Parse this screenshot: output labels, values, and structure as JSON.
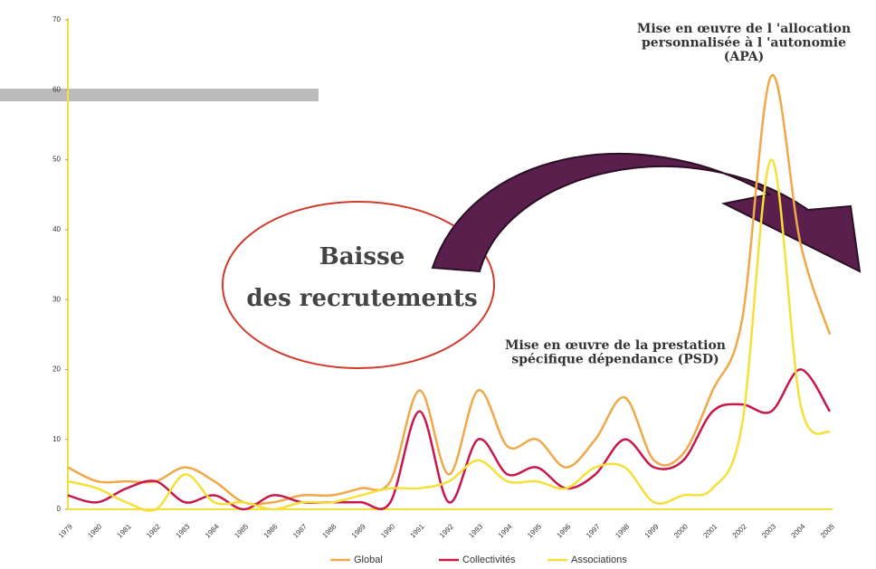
{
  "chart_data": {
    "type": "line",
    "categories": [
      "1979",
      "1980",
      "1981",
      "1982",
      "1983",
      "1984",
      "1985",
      "1986",
      "1987",
      "1988",
      "1989",
      "1990",
      "1991",
      "1992",
      "1993",
      "1994",
      "1995",
      "1996",
      "1997",
      "1998",
      "1999",
      "2000",
      "2001",
      "2002",
      "2003",
      "2004",
      "2005"
    ],
    "series": [
      {
        "name": "Global",
        "color": "#f0a848",
        "values": [
          6,
          4,
          4,
          4,
          6,
          4,
          1,
          1,
          2,
          2,
          3,
          4,
          17,
          5,
          17,
          9,
          10,
          6,
          10,
          16,
          7,
          8,
          17,
          27,
          62,
          38,
          25
        ]
      },
      {
        "name": "Collectivités",
        "color": "#c8184a",
        "values": [
          2,
          1,
          3,
          4,
          1,
          2,
          0,
          2,
          1,
          1,
          1,
          1,
          14,
          1,
          10,
          5,
          6,
          3,
          5,
          10,
          6,
          7,
          14,
          15,
          14,
          20,
          14
        ]
      },
      {
        "name": "Associations",
        "color": "#f5e03a",
        "values": [
          4,
          3,
          1,
          0,
          5,
          1,
          1,
          0,
          1,
          1,
          2,
          3,
          3,
          4,
          7,
          4,
          4,
          3,
          6,
          6,
          1,
          2,
          3,
          12,
          50,
          15,
          11
        ]
      }
    ],
    "ylim": [
      0,
      70
    ],
    "yticks": [
      0,
      10,
      20,
      30,
      40,
      50,
      60,
      70
    ],
    "annotations": [
      {
        "lines": [
          "Mise en œuvre de l 'allocation",
          "personnalisée à l 'autonomie",
          "(APA)"
        ]
      },
      {
        "lines": [
          "Baisse",
          "des recrutements"
        ]
      },
      {
        "lines": [
          "Mise en œuvre de la prestation",
          "spécifique dépendance (PSD)"
        ]
      }
    ]
  }
}
